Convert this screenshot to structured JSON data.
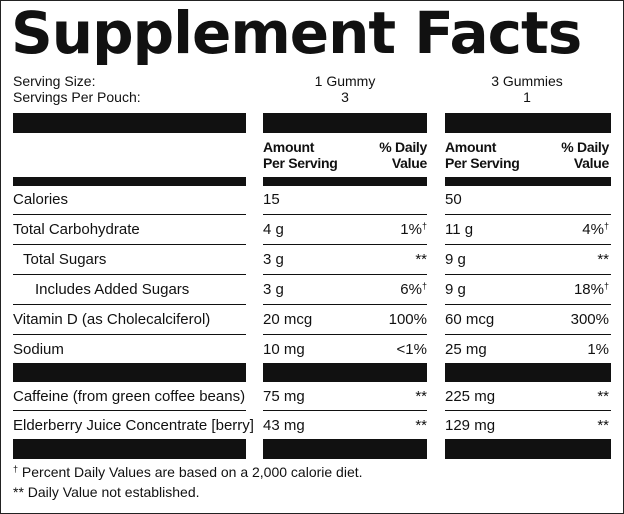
{
  "title": "Supplement Facts",
  "serving": {
    "size_label": "Serving Size:",
    "per_pouch_label": "Servings Per Pouch:",
    "col1_size": "1 Gummy",
    "col1_count": "3",
    "col2_size": "3 Gummies",
    "col2_count": "1"
  },
  "headers": {
    "amount_line1": "Amount",
    "amount_line2": "Per Serving",
    "dv_line1": "% Daily",
    "dv_line2": "Value"
  },
  "rows": [
    {
      "name": "Calories",
      "amt1": "15",
      "dv1": "",
      "dv1_mark": "",
      "amt2": "50",
      "dv2": "",
      "dv2_mark": ""
    },
    {
      "name": "Total Carbohydrate",
      "amt1": "4 g",
      "dv1": "1%",
      "dv1_mark": "†",
      "amt2": "11 g",
      "dv2": "4%",
      "dv2_mark": "†"
    },
    {
      "name": "Total Sugars",
      "amt1": "3 g",
      "dv1": "**",
      "dv1_mark": "",
      "amt2": "9 g",
      "dv2": "**",
      "dv2_mark": ""
    },
    {
      "name": "Includes Added Sugars",
      "amt1": "3 g",
      "dv1": "6%",
      "dv1_mark": "†",
      "amt2": "9 g",
      "dv2": "18%",
      "dv2_mark": "†"
    },
    {
      "name": "Vitamin D (as Cholecalciferol)",
      "amt1": "20 mcg",
      "dv1": "100%",
      "dv1_mark": "",
      "amt2": "60 mcg",
      "dv2": "300%",
      "dv2_mark": ""
    },
    {
      "name": "Sodium",
      "amt1": "10 mg",
      "dv1": "<1%",
      "dv1_mark": "",
      "amt2": "25 mg",
      "dv2": "1%",
      "dv2_mark": ""
    },
    {
      "name": "Caffeine (from green coffee beans)",
      "amt1": "75 mg",
      "dv1": "**",
      "dv1_mark": "",
      "amt2": "225 mg",
      "dv2": "**",
      "dv2_mark": ""
    },
    {
      "name": "Elderberry Juice Concentrate [berry]",
      "amt1": "43 mg",
      "dv1": "**",
      "dv1_mark": "",
      "amt2": "129 mg",
      "dv2": "**",
      "dv2_mark": ""
    }
  ],
  "footnotes": {
    "dagger_mark": "†",
    "dagger_text": " Percent Daily Values are based on a 2,000 calorie diet.",
    "double_star": "** Daily Value not established."
  }
}
